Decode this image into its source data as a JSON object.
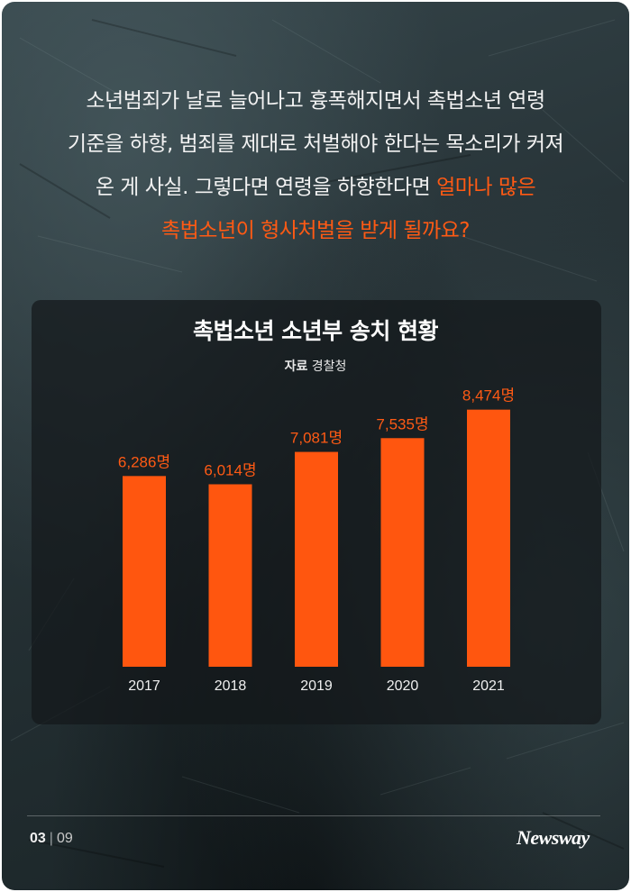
{
  "intro": {
    "line1": "소년범죄가 날로 늘어나고 흉폭해지면서 촉법소년 연령",
    "line2": "기준을 하향, 범죄를 제대로 처벌해야 한다는 목소리가 커져",
    "line3_plain": "온 게 사실. 그렇다면 연령을 하향한다면 ",
    "line3_highlight": "얼마나 많은",
    "line4_highlight": "촉법소년이 형사처벌을 받게 될까요?"
  },
  "colors": {
    "accent": "#ff5a14",
    "bar": "#ff560f",
    "background": "#273337"
  },
  "chart_data": {
    "type": "bar",
    "title": "촉법소년 소년부 송치 현황",
    "source_label": "자료",
    "source": "경찰청",
    "categories": [
      "2017",
      "2018",
      "2019",
      "2020",
      "2021"
    ],
    "values": [
      6286,
      6014,
      7081,
      7535,
      8474
    ],
    "data_labels": [
      "6,286명",
      "6,014명",
      "7,081명",
      "7,535명",
      "8,474명"
    ],
    "unit": "명",
    "ylim": [
      0,
      9800
    ],
    "grid": false,
    "legend": "none"
  },
  "footer": {
    "page_current": "03",
    "separator": "|",
    "page_total": "09",
    "logo": "Newsway"
  }
}
